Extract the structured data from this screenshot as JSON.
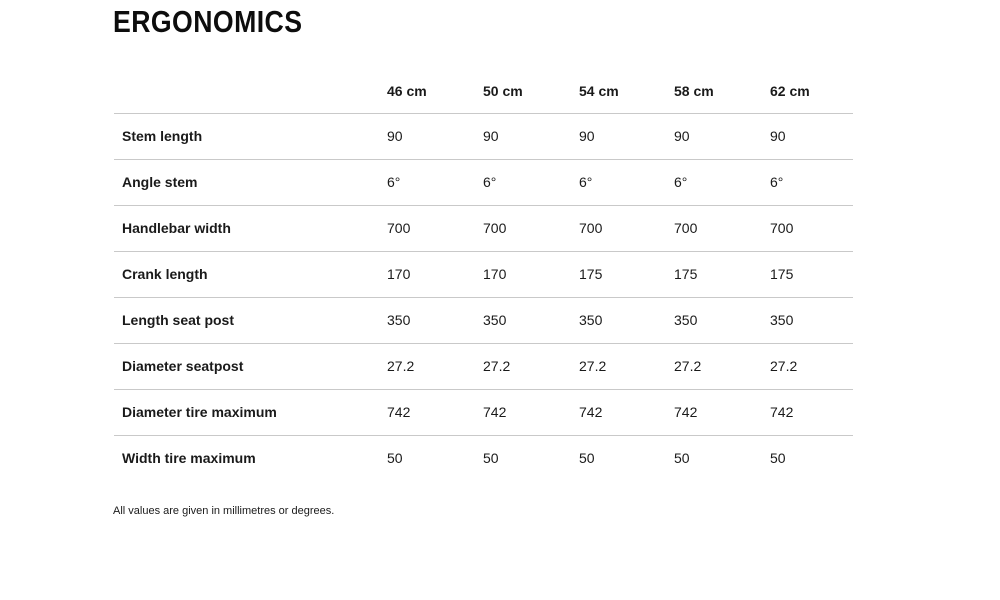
{
  "title": "ERGONOMICS",
  "table": {
    "columns": [
      "46 cm",
      "50 cm",
      "54 cm",
      "58 cm",
      "62 cm"
    ],
    "rows": [
      {
        "label": "Stem length",
        "values": [
          "90",
          "90",
          "90",
          "90",
          "90"
        ]
      },
      {
        "label": "Angle stem",
        "values": [
          "6°",
          "6°",
          "6°",
          "6°",
          "6°"
        ]
      },
      {
        "label": "Handlebar width",
        "values": [
          "700",
          "700",
          "700",
          "700",
          "700"
        ]
      },
      {
        "label": "Crank length",
        "values": [
          "170",
          "170",
          "175",
          "175",
          "175"
        ]
      },
      {
        "label": "Length seat post",
        "values": [
          "350",
          "350",
          "350",
          "350",
          "350"
        ]
      },
      {
        "label": "Diameter seatpost",
        "values": [
          "27.2",
          "27.2",
          "27.2",
          "27.2",
          "27.2"
        ]
      },
      {
        "label": "Diameter tire maximum",
        "values": [
          "742",
          "742",
          "742",
          "742",
          "742"
        ]
      },
      {
        "label": "Width tire maximum",
        "values": [
          "50",
          "50",
          "50",
          "50",
          "50"
        ]
      }
    ]
  },
  "footnote": "All values are given in millimetres or degrees.",
  "colors": {
    "text": "#1a1a1a",
    "title": "#0d0d0d",
    "row_divider": "#c9c9c9",
    "background": "#ffffff"
  }
}
